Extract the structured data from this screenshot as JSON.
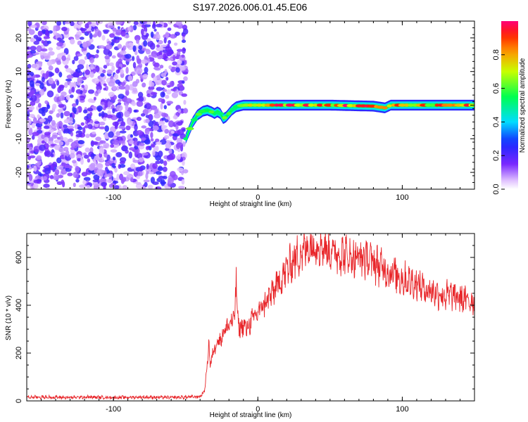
{
  "title": "S197.2026.006.01.45.E06",
  "chart_data": [
    {
      "type": "heatmap",
      "xlabel": "Height of straight line (km)",
      "ylabel": "Frequency (Hz)",
      "xlim": [
        -160,
        150
      ],
      "ylim": [
        -25,
        25
      ],
      "xticks": [
        -100,
        0,
        100
      ],
      "yticks": [
        -20,
        -10,
        0,
        10,
        20
      ],
      "noise_region_x": [
        -160,
        -50
      ],
      "ridge": [
        [
          -50,
          -10
        ],
        [
          -48,
          -8
        ],
        [
          -45,
          -5
        ],
        [
          -42,
          -3
        ],
        [
          -38,
          -1.8
        ],
        [
          -35,
          -1.5
        ],
        [
          -32,
          -2
        ],
        [
          -30,
          -2.5
        ],
        [
          -28,
          -2
        ],
        [
          -26,
          -2.5
        ],
        [
          -24,
          -4
        ],
        [
          -22,
          -3.5
        ],
        [
          -20,
          -2.5
        ],
        [
          -18,
          -1.5
        ],
        [
          -15,
          -0.5
        ],
        [
          -10,
          0
        ],
        [
          0,
          0
        ],
        [
          20,
          0
        ],
        [
          50,
          0
        ],
        [
          80,
          -0.3
        ],
        [
          88,
          -0.8
        ],
        [
          92,
          0
        ],
        [
          100,
          0
        ],
        [
          150,
          0
        ]
      ],
      "colorbar": {
        "label": "Normalized spectral amplitude",
        "range": [
          0,
          1
        ],
        "ticks": [
          0.0,
          0.2,
          0.4,
          0.6,
          0.8
        ]
      }
    },
    {
      "type": "line",
      "xlabel": "Height of straight line (km)",
      "ylabel": "SNR (10 * v/v)",
      "xlim": [
        -160,
        150
      ],
      "ylim": [
        0,
        700
      ],
      "xticks": [
        -100,
        0,
        100
      ],
      "yticks": [
        0,
        200,
        400,
        600
      ],
      "color": "#e8262a",
      "series": [
        {
          "name": "SNR",
          "x": [
            -160,
            -150,
            -140,
            -130,
            -120,
            -110,
            -100,
            -90,
            -80,
            -70,
            -60,
            -50,
            -40,
            -37,
            -35,
            -34,
            -33,
            -32,
            -30,
            -28,
            -26,
            -24,
            -22,
            -20,
            -18,
            -16,
            -15,
            -14,
            -12,
            -10,
            -8,
            -5,
            0,
            5,
            10,
            15,
            20,
            25,
            30,
            35,
            40,
            45,
            50,
            55,
            60,
            65,
            70,
            75,
            80,
            85,
            90,
            95,
            100,
            105,
            110,
            115,
            120,
            125,
            130,
            135,
            140,
            145,
            150
          ],
          "values": [
            15,
            16,
            15,
            14,
            16,
            15,
            14,
            15,
            16,
            15,
            14,
            16,
            18,
            40,
            150,
            260,
            140,
            180,
            220,
            260,
            250,
            290,
            300,
            320,
            330,
            350,
            530,
            330,
            300,
            320,
            300,
            330,
            370,
            410,
            450,
            500,
            550,
            590,
            620,
            645,
            660,
            650,
            630,
            620,
            610,
            600,
            600,
            595,
            580,
            560,
            545,
            530,
            510,
            500,
            490,
            470,
            460,
            450,
            440,
            440,
            430,
            420,
            420
          ]
        }
      ]
    }
  ]
}
